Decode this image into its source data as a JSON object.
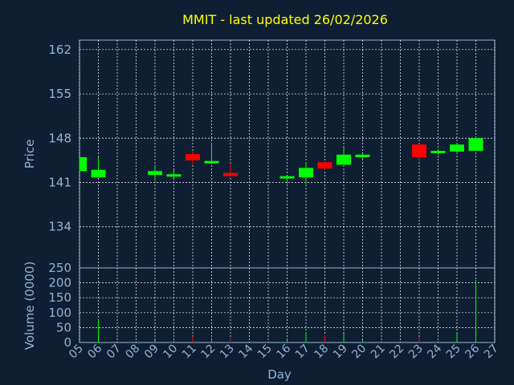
{
  "chart_data": {
    "type": "candlestick",
    "title": "MMIT - last updated 26/02/2026",
    "xlabel": "Day",
    "price_panel": {
      "ylabel": "Price",
      "ylim": [
        127.5,
        163.5
      ],
      "yticks": [
        134,
        141,
        148,
        155,
        162
      ],
      "grid": true
    },
    "volume_panel": {
      "ylabel": "Volume (0000)",
      "ylim": [
        0,
        250
      ],
      "yticks": [
        0,
        50,
        100,
        150,
        200,
        250
      ],
      "grid": true
    },
    "x_ticks": [
      "05",
      "06",
      "07",
      "08",
      "09",
      "10",
      "11",
      "12",
      "13",
      "14",
      "15",
      "16",
      "17",
      "18",
      "19",
      "20",
      "21",
      "22",
      "23",
      "24",
      "25",
      "26",
      "27"
    ],
    "colors": {
      "up": "#00ff00",
      "down": "#ff0000",
      "grid": "#ffffff",
      "axis_text": "#8fb4d8",
      "title": "#ffff00",
      "background": "#0f1f33"
    },
    "candles": [
      {
        "day": 5,
        "open": 142.8,
        "high": 145.0,
        "low": 142.8,
        "close": 145.0,
        "volume": 0
      },
      {
        "day": 6,
        "open": 141.8,
        "high": 145.0,
        "low": 141.8,
        "close": 143.0,
        "volume": 78
      },
      {
        "day": 9,
        "open": 142.2,
        "high": 143.8,
        "low": 141.3,
        "close": 142.8,
        "volume": 8
      },
      {
        "day": 10,
        "open": 142.1,
        "high": 143.0,
        "low": 141.6,
        "close": 142.3,
        "volume": 5
      },
      {
        "day": 11,
        "open": 145.5,
        "high": 146.0,
        "low": 143.8,
        "close": 144.5,
        "volume": 20
      },
      {
        "day": 12,
        "open": 144.2,
        "high": 147.2,
        "low": 144.0,
        "close": 144.4,
        "volume": 6
      },
      {
        "day": 13,
        "open": 142.5,
        "high": 144.0,
        "low": 142.0,
        "close": 142.0,
        "volume": 15
      },
      {
        "day": 16,
        "open": 141.7,
        "high": 142.0,
        "low": 140.8,
        "close": 142.0,
        "volume": 10
      },
      {
        "day": 17,
        "open": 141.8,
        "high": 144.2,
        "low": 140.8,
        "close": 143.3,
        "volume": 35
      },
      {
        "day": 18,
        "open": 144.2,
        "high": 144.3,
        "low": 143.0,
        "close": 143.2,
        "volume": 25
      },
      {
        "day": 19,
        "open": 143.8,
        "high": 146.5,
        "low": 143.8,
        "close": 145.4,
        "volume": 30
      },
      {
        "day": 20,
        "open": 145.0,
        "high": 145.5,
        "low": 144.8,
        "close": 145.4,
        "volume": 7
      },
      {
        "day": 23,
        "open": 147.0,
        "high": 147.1,
        "low": 144.6,
        "close": 145.0,
        "volume": 18
      },
      {
        "day": 24,
        "open": 145.8,
        "high": 146.2,
        "low": 145.4,
        "close": 146.0,
        "volume": 4
      },
      {
        "day": 25,
        "open": 145.9,
        "high": 147.1,
        "low": 145.6,
        "close": 147.0,
        "volume": 32
      },
      {
        "day": 26,
        "open": 146.0,
        "high": 148.2,
        "low": 146.0,
        "close": 148.0,
        "volume": 210
      }
    ]
  }
}
